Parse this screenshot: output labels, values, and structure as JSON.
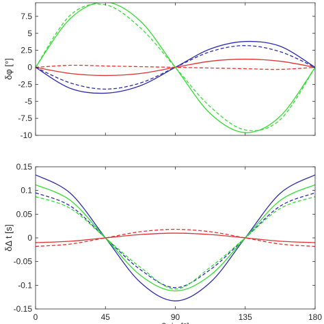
{
  "chart_data": [
    {
      "type": "line",
      "ylabel": "δφ [°]",
      "xlabel": "",
      "xlim": [
        0,
        180
      ],
      "ylim": [
        -10,
        9.5
      ],
      "yticks": [
        -10,
        -7.5,
        -5,
        -2.5,
        0,
        2.5,
        5,
        7.5
      ],
      "ytick_labels": [
        "-10",
        "-7.5",
        "-5",
        "-2.5",
        "0",
        "2.5",
        "5",
        "7.5"
      ],
      "xticks": [
        0,
        45,
        90,
        135,
        180
      ],
      "xtick_labels": [],
      "grid": false,
      "series": [
        {
          "color": "#2b2bb0",
          "dash": "solid",
          "x": [
            0,
            22.5,
            45,
            67.5,
            90,
            112.5,
            135,
            157.5,
            180
          ],
          "y": [
            0,
            -3.1,
            -3.8,
            -2.7,
            0,
            2.7,
            3.8,
            3.1,
            0
          ]
        },
        {
          "color": "#2b2bb0",
          "dash": "dashed",
          "x": [
            0,
            22.5,
            45,
            67.5,
            90,
            112.5,
            135,
            157.5,
            180
          ],
          "y": [
            0,
            -2.3,
            -3.2,
            -2.3,
            0,
            2.3,
            3.2,
            2.3,
            0
          ]
        },
        {
          "color": "#e03030",
          "dash": "solid",
          "x": [
            0,
            22.5,
            45,
            67.5,
            90,
            112.5,
            135,
            157.5,
            180
          ],
          "y": [
            0,
            -0.9,
            -1.2,
            -0.9,
            0,
            0.9,
            1.2,
            0.9,
            0
          ]
        },
        {
          "color": "#e03030",
          "dash": "dashed",
          "x": [
            0,
            22.5,
            45,
            67.5,
            90,
            112.5,
            135,
            157.5,
            180
          ],
          "y": [
            0,
            0.3,
            0.2,
            0.1,
            0,
            -0.1,
            -0.2,
            -0.3,
            0
          ]
        },
        {
          "color": "#33dd33",
          "dash": "solid",
          "x": [
            0,
            22.5,
            45,
            67.5,
            90,
            112.5,
            135,
            157.5,
            180
          ],
          "y": [
            0,
            7.2,
            9.6,
            6.8,
            0,
            -6.8,
            -9.6,
            -7.2,
            0
          ]
        },
        {
          "color": "#33dd33",
          "dash": "dashed",
          "x": [
            0,
            22.5,
            45,
            67.5,
            90,
            112.5,
            135,
            157.5,
            180
          ],
          "y": [
            0,
            7.7,
            9.2,
            5.8,
            0,
            -5.8,
            -9.2,
            -7.7,
            0
          ]
        }
      ]
    },
    {
      "type": "line",
      "ylabel": "δΔ t [s]",
      "xlabel": "β_in [°]",
      "xlim": [
        0,
        180
      ],
      "ylim": [
        -0.15,
        0.15
      ],
      "yticks": [
        -0.15,
        -0.1,
        -0.05,
        0,
        0.05,
        0.1,
        0.15
      ],
      "ytick_labels": [
        "-0.15",
        "-0.1",
        "-0.05",
        "0",
        "0.05",
        "0.1",
        "0.15"
      ],
      "xticks": [
        0,
        45,
        90,
        135,
        180
      ],
      "xtick_labels": [
        "0",
        "45",
        "90",
        "135",
        "180"
      ],
      "grid": false,
      "series": [
        {
          "color": "#2b2bb0",
          "dash": "solid",
          "x": [
            0,
            22.5,
            45,
            67.5,
            90,
            112.5,
            135,
            157.5,
            180
          ],
          "y": [
            0.133,
            0.094,
            0,
            -0.094,
            -0.133,
            -0.094,
            0,
            0.094,
            0.133
          ]
        },
        {
          "color": "#2b2bb0",
          "dash": "dashed",
          "x": [
            0,
            22.5,
            45,
            67.5,
            90,
            112.5,
            135,
            157.5,
            180
          ],
          "y": [
            0.095,
            0.067,
            0,
            -0.067,
            -0.105,
            -0.067,
            0,
            0.067,
            0.095
          ]
        },
        {
          "color": "#33dd33",
          "dash": "solid",
          "x": [
            0,
            22.5,
            45,
            67.5,
            90,
            112.5,
            135,
            157.5,
            180
          ],
          "y": [
            0.112,
            0.079,
            0,
            -0.079,
            -0.112,
            -0.079,
            0,
            0.079,
            0.112
          ]
        },
        {
          "color": "#33dd33",
          "dash": "dashed",
          "x": [
            0,
            22.5,
            45,
            67.5,
            90,
            112.5,
            135,
            157.5,
            180
          ],
          "y": [
            0.087,
            0.062,
            0,
            -0.062,
            -0.108,
            -0.062,
            0,
            0.062,
            0.087
          ]
        },
        {
          "color": "#e03030",
          "dash": "solid",
          "x": [
            0,
            22.5,
            45,
            67.5,
            90,
            112.5,
            135,
            157.5,
            180
          ],
          "y": [
            -0.01,
            -0.007,
            0,
            0.007,
            0.01,
            0.007,
            0,
            -0.007,
            -0.01
          ]
        },
        {
          "color": "#e03030",
          "dash": "dashed",
          "x": [
            0,
            22.5,
            45,
            67.5,
            90,
            112.5,
            135,
            157.5,
            180
          ],
          "y": [
            -0.018,
            -0.013,
            0,
            0.013,
            0.018,
            0.013,
            0,
            -0.013,
            -0.018
          ]
        }
      ]
    }
  ]
}
